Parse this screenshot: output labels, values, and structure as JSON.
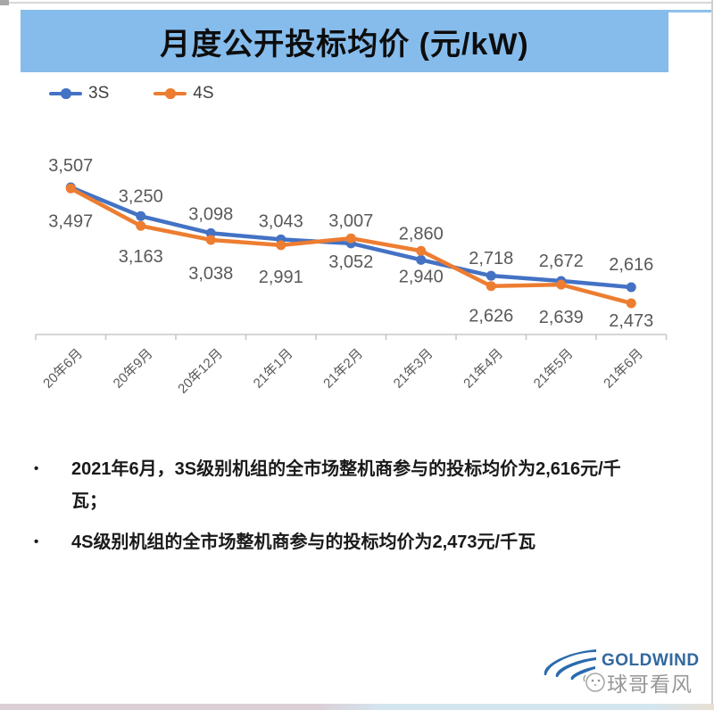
{
  "header": {
    "title": "月度公开投标均价 (元/kW)"
  },
  "legend": [
    {
      "label": "3S",
      "color": "#4472C4"
    },
    {
      "label": "4S",
      "color": "#ED7D31"
    }
  ],
  "chart_data": {
    "type": "line",
    "title": "月度公开投标均价 (元/kW)",
    "categories": [
      "20年6月",
      "20年9月",
      "20年12月",
      "21年1月",
      "21年2月",
      "21年3月",
      "21年4月",
      "21年5月",
      "21年6月"
    ],
    "series": [
      {
        "name": "3S",
        "color": "#4472C4",
        "values": [
          3507,
          3250,
          3098,
          3043,
          3007,
          2860,
          2718,
          2672,
          2616
        ],
        "label_side": "above",
        "label_dy": [
          -18,
          -16,
          -15,
          -14,
          -19,
          -23,
          -13,
          -16,
          -19
        ]
      },
      {
        "name": "4S",
        "color": "#ED7D31",
        "values": [
          3497,
          3163,
          3038,
          2991,
          3052,
          2940,
          2626,
          2639,
          2473
        ],
        "label_side": "below",
        "label_dy": [
          43,
          41,
          44,
          42,
          33,
          35,
          40,
          43,
          26
        ]
      }
    ],
    "xlabel": "",
    "ylabel": "",
    "ylim": [
      2350,
      3600
    ],
    "grid": false,
    "y_axis_visible": false,
    "data_labels": true,
    "legend_position": "top-left",
    "axis_color": "#C9C9C9",
    "label_color": "#595959"
  },
  "bullets": {
    "marker": "•",
    "items": [
      {
        "text": "2021年6月，3S级别机组的全市场整机商参与的投标均价为2,616元/千瓦；"
      },
      {
        "text": "4S级别机组的全市场整机商参与的投标均价为2,473元/千瓦"
      }
    ]
  },
  "footer": {
    "brand": "GOLDWIND",
    "watermark": "球哥看风"
  }
}
